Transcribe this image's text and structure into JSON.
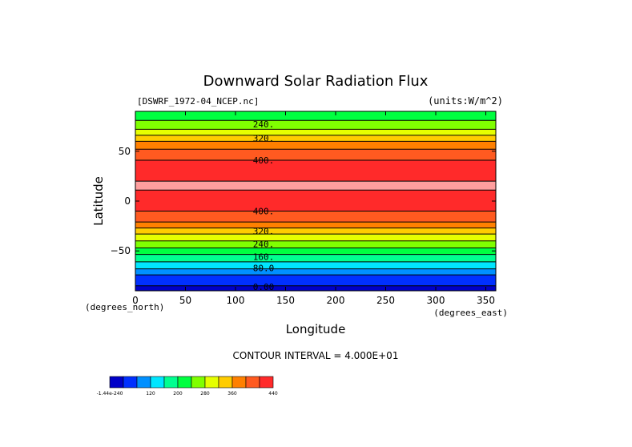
{
  "chart_data": {
    "type": "contour",
    "title": "Downward Solar Radiation Flux",
    "dataset_label": "[DSWRF_1972-04_NCEP.nc]",
    "units_label": "(units:W/m^2)",
    "xlabel": "Longitude",
    "ylabel": "Latitude",
    "x_unit_label": "(degrees_east)",
    "y_unit_label": "(degrees_north)",
    "xlim": [
      0,
      360
    ],
    "ylim": [
      -90,
      90
    ],
    "x_ticks": [
      0,
      50,
      100,
      150,
      200,
      250,
      300,
      350
    ],
    "y_ticks": [
      -50,
      0,
      50
    ],
    "y_tick_labels": [
      "−50",
      "0",
      "50"
    ],
    "contour_interval_text": "CONTOUR INTERVAL = 4.000E+01",
    "contour_interval": 40,
    "bands": [
      {
        "lat_from": -90,
        "lat_to": -85,
        "level": 0,
        "color": "#0000c8"
      },
      {
        "lat_from": -85,
        "lat_to": -74,
        "level": 40,
        "color": "#0030ff"
      },
      {
        "lat_from": -74,
        "lat_to": -68,
        "level": 80,
        "color": "#0090ff"
      },
      {
        "lat_from": -68,
        "lat_to": -61,
        "level": 120,
        "color": "#00e6ff"
      },
      {
        "lat_from": -61,
        "lat_to": -53.5,
        "level": 160,
        "color": "#00ff90"
      },
      {
        "lat_from": -53.5,
        "lat_to": -47,
        "level": 200,
        "color": "#00ff40"
      },
      {
        "lat_from": -47,
        "lat_to": -40,
        "level": 240,
        "color": "#80ff00"
      },
      {
        "lat_from": -40,
        "lat_to": -33,
        "level": 280,
        "color": "#e6ff00"
      },
      {
        "lat_from": -33,
        "lat_to": -27,
        "level": 320,
        "color": "#ffcc00"
      },
      {
        "lat_from": -27,
        "lat_to": -21,
        "level": 360,
        "color": "#ff8000"
      },
      {
        "lat_from": -21,
        "lat_to": -10,
        "level": 360,
        "color": "#ff5a20"
      },
      {
        "lat_from": -10,
        "lat_to": 11,
        "level": 400,
        "color": "#ff2a2a"
      },
      {
        "lat_from": 11,
        "lat_to": 20,
        "level": 440,
        "color": "#ff9e9e"
      },
      {
        "lat_from": 20,
        "lat_to": 41,
        "level": 400,
        "color": "#ff2a2a"
      },
      {
        "lat_from": 41,
        "lat_to": 52,
        "level": 360,
        "color": "#ff5a20"
      },
      {
        "lat_from": 52,
        "lat_to": 60,
        "level": 320,
        "color": "#ff8000"
      },
      {
        "lat_from": 60,
        "lat_to": 66,
        "level": 280,
        "color": "#ffcc00"
      },
      {
        "lat_from": 66,
        "lat_to": 72,
        "level": 240,
        "color": "#e6ff00"
      },
      {
        "lat_from": 72,
        "lat_to": 81,
        "level": 200,
        "color": "#80ff00"
      },
      {
        "lat_from": 81,
        "lat_to": 90,
        "level": 160,
        "color": "#00ff40"
      }
    ],
    "contour_labels": [
      {
        "text": "240.",
        "lat": 77
      },
      {
        "text": "320.",
        "lat": 63
      },
      {
        "text": "400.",
        "lat": 41
      },
      {
        "text": "400.",
        "lat": -10
      },
      {
        "text": "320.",
        "lat": -30
      },
      {
        "text": "240.",
        "lat": -43
      },
      {
        "text": "160.",
        "lat": -56
      },
      {
        "text": "80.0",
        "lat": -67
      },
      {
        "text": "0.00",
        "lat": -86
      }
    ],
    "colorbar": {
      "colors": [
        "#0000c8",
        "#0030ff",
        "#0090ff",
        "#00e6ff",
        "#00ff90",
        "#00ff40",
        "#80ff00",
        "#e6ff00",
        "#ffcc00",
        "#ff8000",
        "#ff5a20",
        "#ff2a2a"
      ],
      "labels": [
        {
          "text": "-1.44e-240",
          "index": 0
        },
        {
          "text": "120",
          "index": 3
        },
        {
          "text": "200",
          "index": 5
        },
        {
          "text": "280",
          "index": 7
        },
        {
          "text": "360",
          "index": 9
        },
        {
          "text": "440",
          "index": 12
        }
      ]
    }
  }
}
